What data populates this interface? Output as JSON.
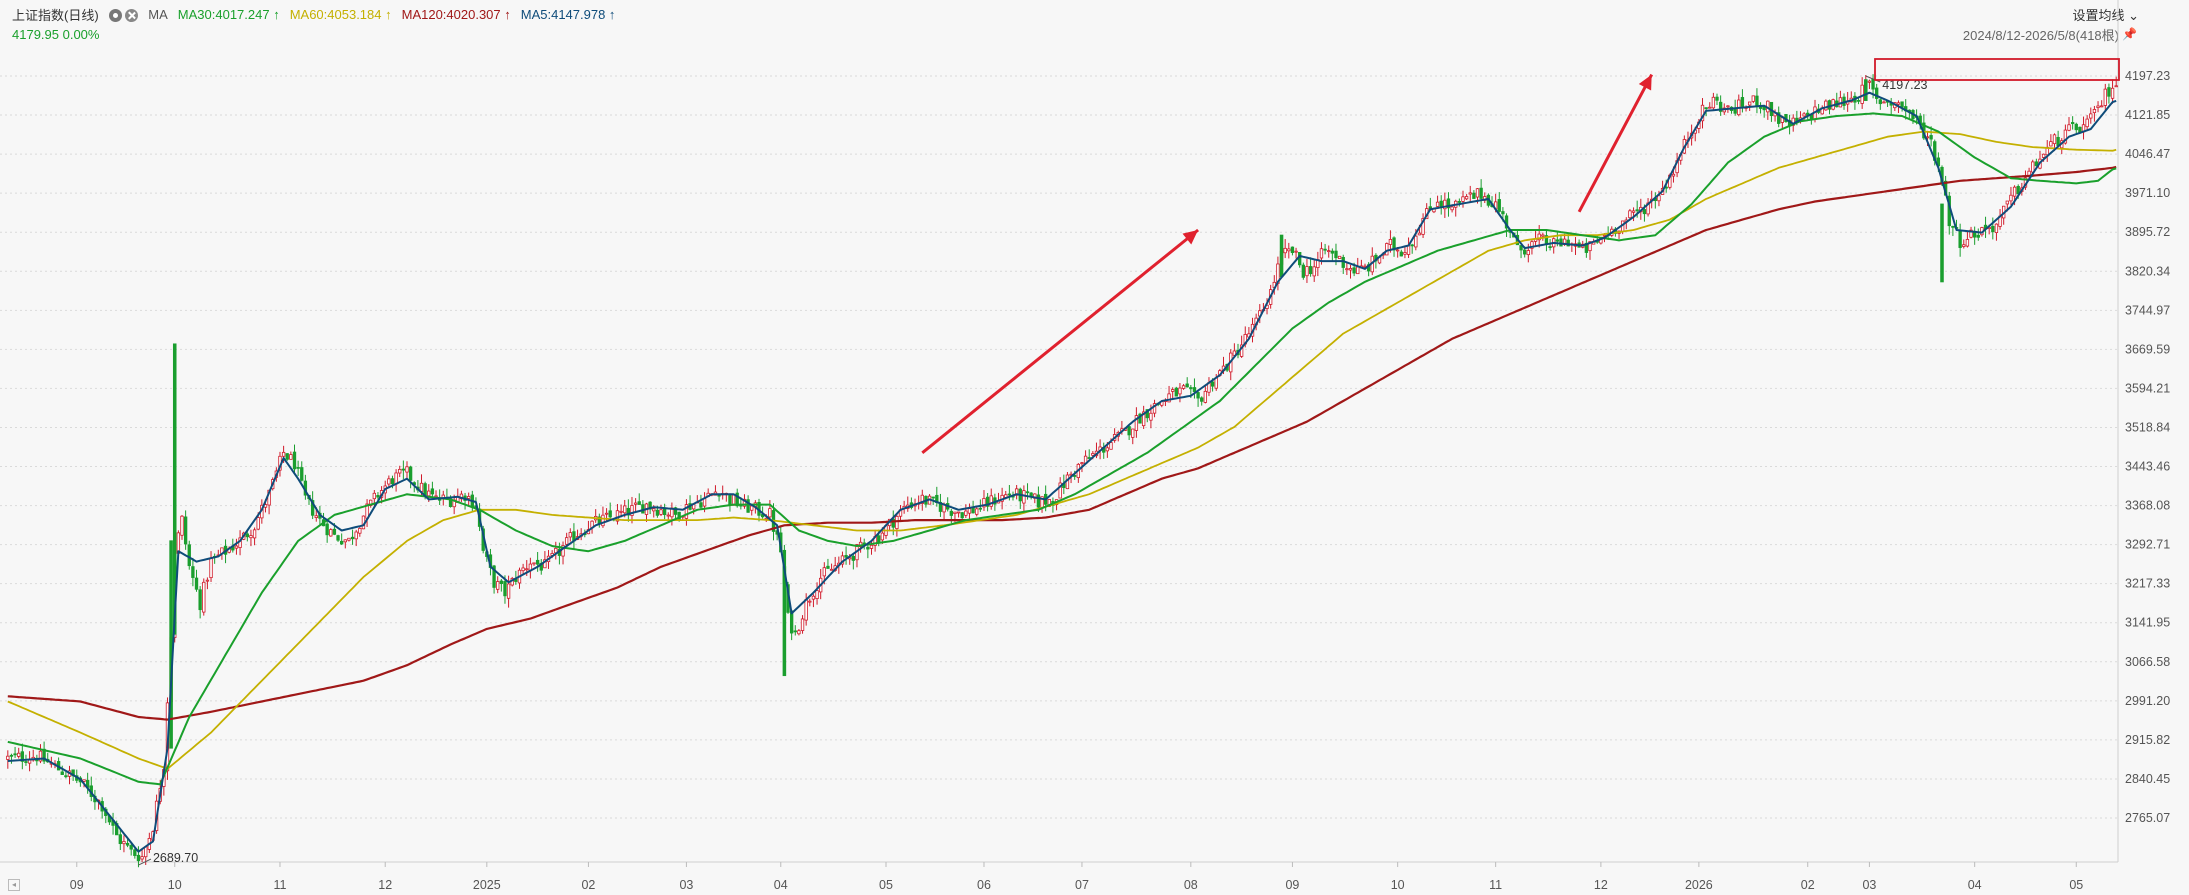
{
  "header": {
    "title": "上证指数(日线)",
    "indicator": "MA",
    "ma30": "MA30:4017.247 ↑",
    "ma60": "MA60:4053.184 ↑",
    "ma120": "MA120:4020.307 ↑",
    "ma5": "MA5:4147.978 ↑",
    "last_price": "4179.95 0.00%",
    "settings_label": "设置均线",
    "date_range": "2024/8/12-2026/5/8(418根)"
  },
  "colors": {
    "up": "#d11a2a",
    "down": "#1a9e2e",
    "ma5": "#0f4c7a",
    "ma30": "#1aa02c",
    "ma60": "#c4b000",
    "ma120": "#a01818",
    "arrow": "#e0212e",
    "highlight_box": "#d11a2a"
  },
  "chart_data": {
    "type": "candlestick",
    "title": "上证指数(日线)",
    "ylim": [
      2700,
      4230
    ],
    "y_ticks": [
      "4197.23",
      "4121.85",
      "4046.47",
      "3971.10",
      "3895.72",
      "3820.34",
      "3744.97",
      "3669.59",
      "3594.21",
      "3518.84",
      "3443.46",
      "3368.08",
      "3292.71",
      "3217.33",
      "3141.95",
      "3066.58",
      "2991.20",
      "2915.82",
      "2840.45",
      "2765.07"
    ],
    "x_ticks": [
      "09",
      "10",
      "11",
      "12",
      "2025",
      "02",
      "03",
      "04",
      "05",
      "06",
      "07",
      "08",
      "09",
      "10",
      "11",
      "12",
      "2026",
      "02",
      "03",
      "04",
      "05"
    ],
    "x_tick_index": [
      19,
      46,
      75,
      104,
      132,
      160,
      187,
      213,
      242,
      269,
      296,
      326,
      354,
      383,
      410,
      439,
      466,
      496,
      513,
      542,
      570
    ],
    "annotations": {
      "high": "4197.23",
      "low": "2689.70"
    },
    "path_anchors": [
      [
        0,
        2880
      ],
      [
        8,
        2885
      ],
      [
        14,
        2860
      ],
      [
        20,
        2835
      ],
      [
        26,
        2790
      ],
      [
        30,
        2730
      ],
      [
        34,
        2700
      ],
      [
        37,
        2690
      ],
      [
        40,
        2750
      ],
      [
        43,
        2870
      ],
      [
        45,
        3120
      ],
      [
        46,
        3280
      ],
      [
        48,
        3340
      ],
      [
        50,
        3250
      ],
      [
        53,
        3180
      ],
      [
        56,
        3260
      ],
      [
        60,
        3280
      ],
      [
        64,
        3300
      ],
      [
        68,
        3330
      ],
      [
        72,
        3390
      ],
      [
        76,
        3470
      ],
      [
        79,
        3450
      ],
      [
        82,
        3380
      ],
      [
        86,
        3340
      ],
      [
        90,
        3310
      ],
      [
        94,
        3300
      ],
      [
        98,
        3350
      ],
      [
        102,
        3390
      ],
      [
        106,
        3420
      ],
      [
        110,
        3430
      ],
      [
        114,
        3400
      ],
      [
        118,
        3380
      ],
      [
        122,
        3380
      ],
      [
        126,
        3390
      ],
      [
        129,
        3370
      ],
      [
        131,
        3280
      ],
      [
        134,
        3220
      ],
      [
        137,
        3200
      ],
      [
        140,
        3230
      ],
      [
        144,
        3260
      ],
      [
        148,
        3250
      ],
      [
        152,
        3280
      ],
      [
        156,
        3310
      ],
      [
        160,
        3330
      ],
      [
        164,
        3340
      ],
      [
        168,
        3350
      ],
      [
        172,
        3360
      ],
      [
        176,
        3370
      ],
      [
        180,
        3360
      ],
      [
        184,
        3350
      ],
      [
        188,
        3370
      ],
      [
        192,
        3380
      ],
      [
        196,
        3400
      ],
      [
        199,
        3380
      ],
      [
        202,
        3370
      ],
      [
        206,
        3360
      ],
      [
        210,
        3350
      ],
      [
        213,
        3280
      ],
      [
        215,
        3150
      ],
      [
        217,
        3120
      ],
      [
        220,
        3180
      ],
      [
        224,
        3230
      ],
      [
        228,
        3250
      ],
      [
        232,
        3270
      ],
      [
        236,
        3290
      ],
      [
        240,
        3310
      ],
      [
        244,
        3340
      ],
      [
        248,
        3370
      ],
      [
        252,
        3380
      ],
      [
        256,
        3370
      ],
      [
        260,
        3360
      ],
      [
        264,
        3355
      ],
      [
        268,
        3365
      ],
      [
        272,
        3380
      ],
      [
        276,
        3390
      ],
      [
        280,
        3385
      ],
      [
        284,
        3375
      ],
      [
        288,
        3380
      ],
      [
        292,
        3420
      ],
      [
        296,
        3450
      ],
      [
        300,
        3470
      ],
      [
        304,
        3490
      ],
      [
        308,
        3510
      ],
      [
        312,
        3540
      ],
      [
        316,
        3560
      ],
      [
        320,
        3580
      ],
      [
        324,
        3590
      ],
      [
        328,
        3570
      ],
      [
        332,
        3610
      ],
      [
        336,
        3640
      ],
      [
        340,
        3680
      ],
      [
        344,
        3720
      ],
      [
        348,
        3780
      ],
      [
        351,
        3850
      ],
      [
        354,
        3860
      ],
      [
        357,
        3820
      ],
      [
        360,
        3830
      ],
      [
        363,
        3860
      ],
      [
        366,
        3850
      ],
      [
        369,
        3830
      ],
      [
        372,
        3820
      ],
      [
        375,
        3830
      ],
      [
        378,
        3850
      ],
      [
        381,
        3870
      ],
      [
        384,
        3860
      ],
      [
        387,
        3880
      ],
      [
        390,
        3920
      ],
      [
        394,
        3960
      ],
      [
        398,
        3940
      ],
      [
        402,
        3960
      ],
      [
        406,
        3970
      ],
      [
        410,
        3950
      ],
      [
        414,
        3900
      ],
      [
        416,
        3860
      ],
      [
        419,
        3870
      ],
      [
        422,
        3880
      ],
      [
        426,
        3870
      ],
      [
        430,
        3880
      ],
      [
        434,
        3860
      ],
      [
        437,
        3870
      ],
      [
        440,
        3890
      ],
      [
        444,
        3910
      ],
      [
        448,
        3930
      ],
      [
        452,
        3950
      ],
      [
        456,
        3980
      ],
      [
        460,
        4030
      ],
      [
        463,
        4080
      ],
      [
        466,
        4120
      ],
      [
        470,
        4150
      ],
      [
        474,
        4130
      ],
      [
        478,
        4140
      ],
      [
        482,
        4150
      ],
      [
        486,
        4130
      ],
      [
        490,
        4100
      ],
      [
        494,
        4110
      ],
      [
        498,
        4130
      ],
      [
        502,
        4140
      ],
      [
        506,
        4150
      ],
      [
        510,
        4160
      ],
      [
        513,
        4180
      ],
      [
        515,
        4150
      ],
      [
        518,
        4150
      ],
      [
        522,
        4140
      ],
      [
        526,
        4110
      ],
      [
        530,
        4070
      ],
      [
        533,
        4000
      ],
      [
        535,
        3920
      ],
      [
        538,
        3880
      ],
      [
        541,
        3890
      ],
      [
        544,
        3900
      ],
      [
        548,
        3910
      ],
      [
        552,
        3960
      ],
      [
        556,
        4000
      ],
      [
        560,
        4040
      ],
      [
        564,
        4070
      ],
      [
        568,
        4090
      ],
      [
        572,
        4100
      ],
      [
        575,
        4120
      ],
      [
        578,
        4160
      ],
      [
        580,
        4180
      ]
    ],
    "ma5_anchors": [
      [
        0,
        2875
      ],
      [
        10,
        2880
      ],
      [
        20,
        2840
      ],
      [
        28,
        2770
      ],
      [
        36,
        2700
      ],
      [
        40,
        2720
      ],
      [
        44,
        2900
      ],
      [
        47,
        3280
      ],
      [
        52,
        3260
      ],
      [
        58,
        3270
      ],
      [
        64,
        3300
      ],
      [
        70,
        3360
      ],
      [
        76,
        3460
      ],
      [
        80,
        3420
      ],
      [
        86,
        3350
      ],
      [
        92,
        3320
      ],
      [
        98,
        3330
      ],
      [
        104,
        3400
      ],
      [
        110,
        3420
      ],
      [
        116,
        3380
      ],
      [
        124,
        3385
      ],
      [
        129,
        3375
      ],
      [
        133,
        3250
      ],
      [
        138,
        3220
      ],
      [
        146,
        3250
      ],
      [
        154,
        3290
      ],
      [
        162,
        3330
      ],
      [
        170,
        3350
      ],
      [
        178,
        3365
      ],
      [
        186,
        3360
      ],
      [
        194,
        3390
      ],
      [
        200,
        3390
      ],
      [
        206,
        3365
      ],
      [
        212,
        3330
      ],
      [
        216,
        3160
      ],
      [
        222,
        3200
      ],
      [
        230,
        3260
      ],
      [
        238,
        3300
      ],
      [
        246,
        3360
      ],
      [
        254,
        3380
      ],
      [
        262,
        3360
      ],
      [
        270,
        3370
      ],
      [
        278,
        3390
      ],
      [
        286,
        3380
      ],
      [
        294,
        3430
      ],
      [
        302,
        3480
      ],
      [
        310,
        3530
      ],
      [
        318,
        3570
      ],
      [
        326,
        3580
      ],
      [
        334,
        3620
      ],
      [
        342,
        3690
      ],
      [
        350,
        3800
      ],
      [
        356,
        3850
      ],
      [
        362,
        3840
      ],
      [
        368,
        3840
      ],
      [
        374,
        3825
      ],
      [
        380,
        3860
      ],
      [
        386,
        3870
      ],
      [
        392,
        3940
      ],
      [
        400,
        3950
      ],
      [
        408,
        3960
      ],
      [
        414,
        3900
      ],
      [
        418,
        3865
      ],
      [
        426,
        3875
      ],
      [
        434,
        3870
      ],
      [
        440,
        3885
      ],
      [
        448,
        3925
      ],
      [
        456,
        3975
      ],
      [
        462,
        4060
      ],
      [
        468,
        4130
      ],
      [
        476,
        4135
      ],
      [
        484,
        4140
      ],
      [
        492,
        4105
      ],
      [
        500,
        4135
      ],
      [
        508,
        4150
      ],
      [
        513,
        4165
      ],
      [
        518,
        4150
      ],
      [
        526,
        4120
      ],
      [
        532,
        4020
      ],
      [
        537,
        3900
      ],
      [
        544,
        3895
      ],
      [
        552,
        3945
      ],
      [
        560,
        4030
      ],
      [
        568,
        4080
      ],
      [
        574,
        4095
      ],
      [
        580,
        4147
      ]
    ],
    "ma30_anchors": [
      [
        0,
        2912
      ],
      [
        20,
        2880
      ],
      [
        36,
        2835
      ],
      [
        42,
        2830
      ],
      [
        50,
        2960
      ],
      [
        60,
        3080
      ],
      [
        70,
        3200
      ],
      [
        80,
        3300
      ],
      [
        90,
        3350
      ],
      [
        100,
        3370
      ],
      [
        110,
        3390
      ],
      [
        122,
        3380
      ],
      [
        130,
        3360
      ],
      [
        140,
        3320
      ],
      [
        150,
        3290
      ],
      [
        160,
        3280
      ],
      [
        170,
        3300
      ],
      [
        180,
        3330
      ],
      [
        190,
        3360
      ],
      [
        200,
        3370
      ],
      [
        210,
        3370
      ],
      [
        218,
        3320
      ],
      [
        226,
        3300
      ],
      [
        234,
        3290
      ],
      [
        244,
        3300
      ],
      [
        254,
        3320
      ],
      [
        264,
        3340
      ],
      [
        274,
        3350
      ],
      [
        284,
        3360
      ],
      [
        294,
        3390
      ],
      [
        304,
        3430
      ],
      [
        314,
        3470
      ],
      [
        324,
        3520
      ],
      [
        334,
        3570
      ],
      [
        344,
        3640
      ],
      [
        354,
        3710
      ],
      [
        364,
        3760
      ],
      [
        374,
        3800
      ],
      [
        384,
        3830
      ],
      [
        394,
        3860
      ],
      [
        404,
        3880
      ],
      [
        414,
        3900
      ],
      [
        424,
        3900
      ],
      [
        434,
        3890
      ],
      [
        444,
        3880
      ],
      [
        454,
        3890
      ],
      [
        464,
        3950
      ],
      [
        474,
        4030
      ],
      [
        484,
        4080
      ],
      [
        494,
        4110
      ],
      [
        504,
        4120
      ],
      [
        514,
        4125
      ],
      [
        522,
        4120
      ],
      [
        532,
        4090
      ],
      [
        542,
        4040
      ],
      [
        552,
        4000
      ],
      [
        560,
        3995
      ],
      [
        570,
        3990
      ],
      [
        576,
        3995
      ],
      [
        580,
        4017
      ]
    ],
    "ma60_anchors": [
      [
        0,
        2990
      ],
      [
        20,
        2930
      ],
      [
        36,
        2880
      ],
      [
        44,
        2860
      ],
      [
        56,
        2930
      ],
      [
        70,
        3030
      ],
      [
        84,
        3130
      ],
      [
        98,
        3230
      ],
      [
        110,
        3300
      ],
      [
        120,
        3340
      ],
      [
        130,
        3360
      ],
      [
        140,
        3360
      ],
      [
        150,
        3350
      ],
      [
        160,
        3345
      ],
      [
        170,
        3340
      ],
      [
        180,
        3340
      ],
      [
        190,
        3340
      ],
      [
        200,
        3345
      ],
      [
        210,
        3340
      ],
      [
        222,
        3330
      ],
      [
        234,
        3320
      ],
      [
        246,
        3320
      ],
      [
        258,
        3330
      ],
      [
        268,
        3340
      ],
      [
        278,
        3350
      ],
      [
        288,
        3370
      ],
      [
        298,
        3390
      ],
      [
        308,
        3420
      ],
      [
        318,
        3450
      ],
      [
        328,
        3480
      ],
      [
        338,
        3520
      ],
      [
        348,
        3580
      ],
      [
        358,
        3640
      ],
      [
        368,
        3700
      ],
      [
        378,
        3740
      ],
      [
        388,
        3780
      ],
      [
        398,
        3820
      ],
      [
        408,
        3860
      ],
      [
        418,
        3880
      ],
      [
        428,
        3890
      ],
      [
        438,
        3890
      ],
      [
        448,
        3900
      ],
      [
        458,
        3920
      ],
      [
        468,
        3960
      ],
      [
        478,
        3990
      ],
      [
        488,
        4020
      ],
      [
        498,
        4040
      ],
      [
        508,
        4060
      ],
      [
        518,
        4080
      ],
      [
        528,
        4090
      ],
      [
        538,
        4085
      ],
      [
        548,
        4070
      ],
      [
        558,
        4060
      ],
      [
        570,
        4055
      ],
      [
        580,
        4053
      ]
    ],
    "ma120_anchors": [
      [
        0,
        3000
      ],
      [
        20,
        2990
      ],
      [
        36,
        2960
      ],
      [
        44,
        2955
      ],
      [
        56,
        2970
      ],
      [
        70,
        2990
      ],
      [
        84,
        3010
      ],
      [
        98,
        3030
      ],
      [
        110,
        3060
      ],
      [
        122,
        3100
      ],
      [
        132,
        3130
      ],
      [
        144,
        3150
      ],
      [
        156,
        3180
      ],
      [
        168,
        3210
      ],
      [
        180,
        3250
      ],
      [
        192,
        3280
      ],
      [
        204,
        3310
      ],
      [
        214,
        3330
      ],
      [
        226,
        3335
      ],
      [
        238,
        3335
      ],
      [
        250,
        3340
      ],
      [
        262,
        3340
      ],
      [
        274,
        3340
      ],
      [
        286,
        3345
      ],
      [
        298,
        3360
      ],
      [
        308,
        3390
      ],
      [
        318,
        3420
      ],
      [
        328,
        3440
      ],
      [
        338,
        3470
      ],
      [
        348,
        3500
      ],
      [
        358,
        3530
      ],
      [
        368,
        3570
      ],
      [
        378,
        3610
      ],
      [
        388,
        3650
      ],
      [
        398,
        3690
      ],
      [
        408,
        3720
      ],
      [
        418,
        3750
      ],
      [
        428,
        3780
      ],
      [
        438,
        3810
      ],
      [
        448,
        3840
      ],
      [
        458,
        3870
      ],
      [
        468,
        3900
      ],
      [
        478,
        3920
      ],
      [
        488,
        3940
      ],
      [
        498,
        3955
      ],
      [
        508,
        3965
      ],
      [
        518,
        3975
      ],
      [
        528,
        3985
      ],
      [
        538,
        3995
      ],
      [
        548,
        4000
      ],
      [
        558,
        4005
      ],
      [
        570,
        4012
      ],
      [
        580,
        4020
      ]
    ],
    "spikes": [
      [
        46,
        3680,
        3120
      ],
      [
        45,
        3300,
        2900
      ],
      [
        214,
        3040,
        3250
      ],
      [
        512,
        4190,
        4150
      ],
      [
        533,
        3800,
        3950
      ],
      [
        351,
        3890,
        3810
      ]
    ]
  }
}
